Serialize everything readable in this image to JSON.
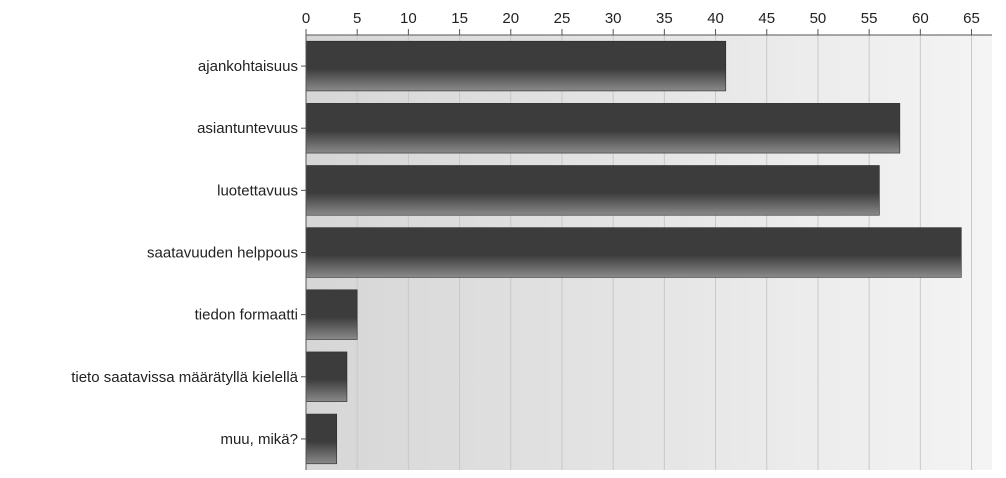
{
  "chart_data": {
    "type": "bar",
    "orientation": "horizontal",
    "title": "",
    "xlabel": "",
    "ylabel": "",
    "categories": [
      "ajankohtaisuus",
      "asiantuntevuus",
      "luotettavuus",
      "saatavuuden helppous",
      "tiedon formaatti",
      "tieto saatavissa määrätyllä kielellä",
      "muu, mikä?"
    ],
    "values": [
      41,
      58,
      56,
      64,
      5,
      4,
      3
    ],
    "xlim": [
      0,
      67
    ],
    "x_ticks": [
      "0",
      "5",
      "10",
      "15",
      "20",
      "25",
      "30",
      "35",
      "40",
      "45",
      "50",
      "55",
      "60",
      "65"
    ],
    "x_axis_position": "top",
    "grid": true,
    "legend": "none",
    "colors": {
      "bar_dark": "#3c3c3c",
      "bar_light": "#8a8a8a",
      "plot_bg_left": "#d6d6d6",
      "plot_bg_right": "#f4f4f4",
      "grid": "#c8c8c8",
      "axis": "#555555",
      "text": "#222222"
    }
  }
}
